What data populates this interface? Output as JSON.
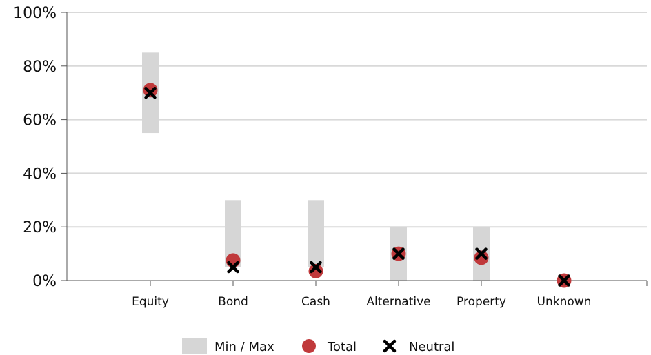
{
  "chart_data": {
    "type": "scatter",
    "categories": [
      "Equity",
      "Bond",
      "Cash",
      "Alternative",
      "Property",
      "Unknown"
    ],
    "series": [
      {
        "name": "Min / Max",
        "kind": "range",
        "min": [
          55,
          5,
          5,
          0,
          0,
          0
        ],
        "max": [
          85,
          30,
          30,
          20,
          20,
          0
        ]
      },
      {
        "name": "Total",
        "kind": "dot",
        "values": [
          71,
          7.5,
          3.5,
          10,
          8.5,
          0
        ]
      },
      {
        "name": "Neutral",
        "kind": "cross",
        "values": [
          70,
          5,
          5,
          10,
          10,
          0
        ]
      }
    ],
    "ylim": [
      0,
      100
    ],
    "yticks": [
      "0%",
      "20%",
      "40%",
      "60%",
      "80%",
      "100%"
    ],
    "ytick_values": [
      0,
      20,
      40,
      60,
      80,
      100
    ],
    "grid": true,
    "legend_position": "bottom-center",
    "colors": {
      "range": "#d6d6d6",
      "total": "#c0393b",
      "neutral": "#000000",
      "grid": "#d9d9d9",
      "axis": "#555555"
    }
  }
}
